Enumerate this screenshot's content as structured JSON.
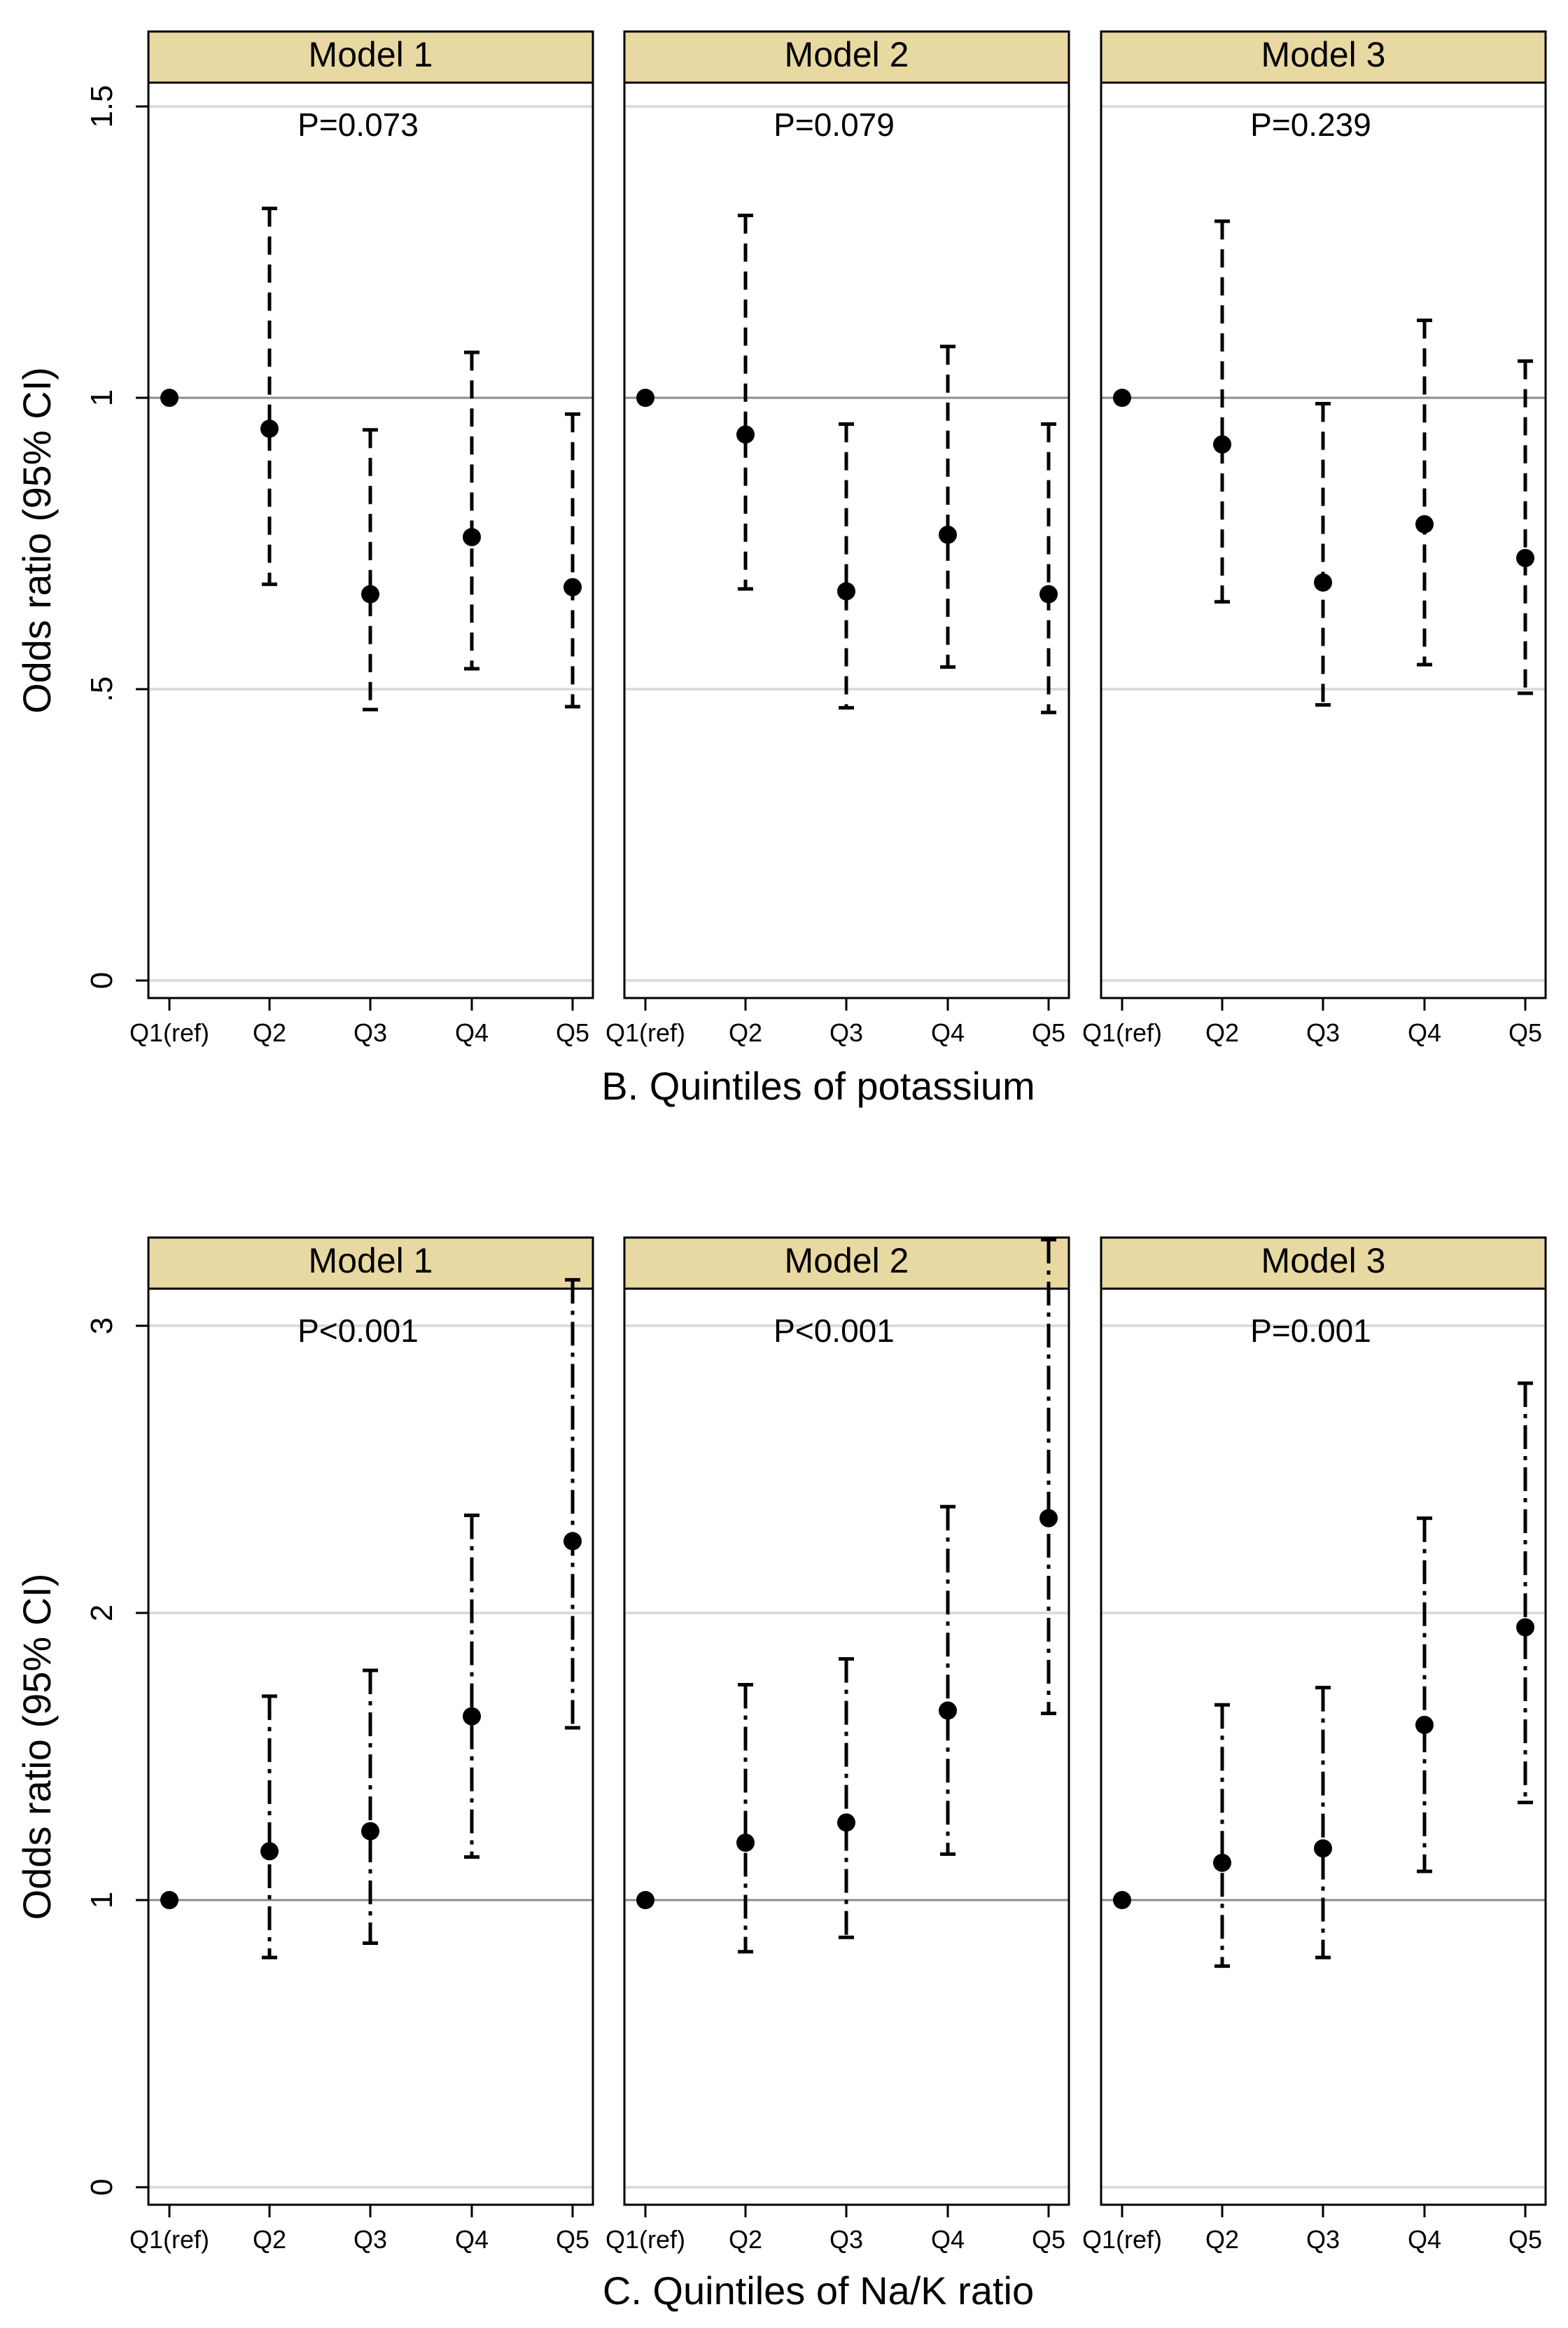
{
  "chart_data": [
    {
      "type": "errorbar",
      "title": "",
      "xlabel": "B. Quintiles of potassium",
      "ylabel": "Odds ratio (95% CI)",
      "categories": [
        "Q1(ref)",
        "Q2",
        "Q3",
        "Q4",
        "Q5"
      ],
      "ylim": [
        0,
        1.5
      ],
      "yticks": [
        0,
        0.5,
        1,
        1.5
      ],
      "ytick_labels": [
        "0",
        ".5",
        "1",
        "1.5"
      ],
      "line_style": "dashed",
      "panels": [
        {
          "name": "Model 1",
          "p_label": "P=0.073",
          "or": [
            1,
            0.947,
            0.663,
            0.761,
            0.675
          ],
          "lower": [
            null,
            0.68,
            0.465,
            0.535,
            0.47
          ],
          "upper": [
            null,
            1.325,
            0.945,
            1.078,
            0.972
          ]
        },
        {
          "name": "Model 2",
          "p_label": "P=0.079",
          "or": [
            1,
            0.937,
            0.668,
            0.765,
            0.663
          ],
          "lower": [
            null,
            0.672,
            0.468,
            0.538,
            0.46
          ],
          "upper": [
            null,
            1.313,
            0.955,
            1.088,
            0.955
          ]
        },
        {
          "name": "Model 3",
          "p_label": "P=0.239",
          "or": [
            1,
            0.92,
            0.683,
            0.783,
            0.725
          ],
          "lower": [
            null,
            0.65,
            0.473,
            0.542,
            0.493
          ],
          "upper": [
            null,
            1.303,
            0.99,
            1.133,
            1.063
          ]
        }
      ]
    },
    {
      "type": "errorbar",
      "title": "",
      "xlabel": "C. Quintiles of Na/K ratio",
      "ylabel": "Odds ratio (95% CI)",
      "categories": [
        "Q1(ref)",
        "Q2",
        "Q3",
        "Q4",
        "Q5"
      ],
      "ylim": [
        0,
        3.35
      ],
      "yticks": [
        0,
        1,
        2,
        3
      ],
      "ytick_labels": [
        "0",
        "1",
        "2",
        "3"
      ],
      "line_style": "dashdot",
      "panels": [
        {
          "name": "Model 1",
          "p_label": "P<0.001",
          "or": [
            1,
            1.17,
            1.24,
            1.64,
            2.25
          ],
          "lower": [
            null,
            0.8,
            0.85,
            1.15,
            1.6
          ],
          "upper": [
            null,
            1.71,
            1.8,
            2.34,
            3.16
          ]
        },
        {
          "name": "Model 2",
          "p_label": "P<0.001",
          "or": [
            1,
            1.2,
            1.27,
            1.66,
            2.33
          ],
          "lower": [
            null,
            0.82,
            0.87,
            1.16,
            1.65
          ],
          "upper": [
            null,
            1.75,
            1.84,
            2.37,
            3.3
          ]
        },
        {
          "name": "Model 3",
          "p_label": "P=0.001",
          "or": [
            1,
            1.13,
            1.18,
            1.61,
            1.95
          ],
          "lower": [
            null,
            0.77,
            0.8,
            1.1,
            1.34
          ],
          "upper": [
            null,
            1.68,
            1.74,
            2.33,
            2.8
          ]
        }
      ]
    }
  ],
  "colors": {
    "header_fill": "#e8d8a2",
    "refline": "#8c8c8c",
    "gridline": "#dcdcdc",
    "marker": "#000000"
  }
}
